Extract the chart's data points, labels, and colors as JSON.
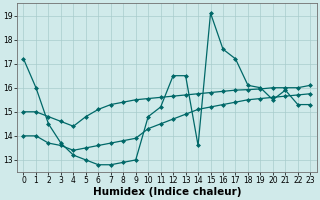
{
  "xlabel": "Humidex (Indice chaleur)",
  "xlim": [
    -0.5,
    23.5
  ],
  "ylim": [
    12.5,
    19.5
  ],
  "yticks": [
    13,
    14,
    15,
    16,
    17,
    18,
    19
  ],
  "xticks": [
    0,
    1,
    2,
    3,
    4,
    5,
    6,
    7,
    8,
    9,
    10,
    11,
    12,
    13,
    14,
    15,
    16,
    17,
    18,
    19,
    20,
    21,
    22,
    23
  ],
  "background_color": "#d0eaea",
  "grid_color": "#a8cccc",
  "line_color": "#006868",
  "line1_y": [
    17.2,
    16.0,
    14.5,
    13.7,
    13.2,
    13.0,
    12.8,
    12.8,
    12.9,
    13.0,
    14.8,
    15.2,
    16.5,
    16.5,
    13.6,
    19.1,
    17.6,
    17.2,
    16.1,
    16.0,
    15.5,
    15.9,
    15.3,
    15.3
  ],
  "line2_y": [
    15.0,
    15.0,
    14.8,
    14.6,
    14.4,
    14.8,
    15.1,
    15.3,
    15.4,
    15.5,
    15.55,
    15.6,
    15.65,
    15.7,
    15.75,
    15.8,
    15.85,
    15.9,
    15.92,
    15.95,
    16.0,
    16.0,
    16.0,
    16.1
  ],
  "line3_y": [
    14.0,
    14.0,
    13.7,
    13.6,
    13.4,
    13.5,
    13.6,
    13.7,
    13.8,
    13.9,
    14.3,
    14.5,
    14.7,
    14.9,
    15.1,
    15.2,
    15.3,
    15.4,
    15.5,
    15.55,
    15.6,
    15.65,
    15.7,
    15.75
  ],
  "marker": "D",
  "marker_size": 2.0,
  "line_width": 0.9,
  "tick_fontsize": 5.5,
  "xlabel_fontsize": 7.5
}
